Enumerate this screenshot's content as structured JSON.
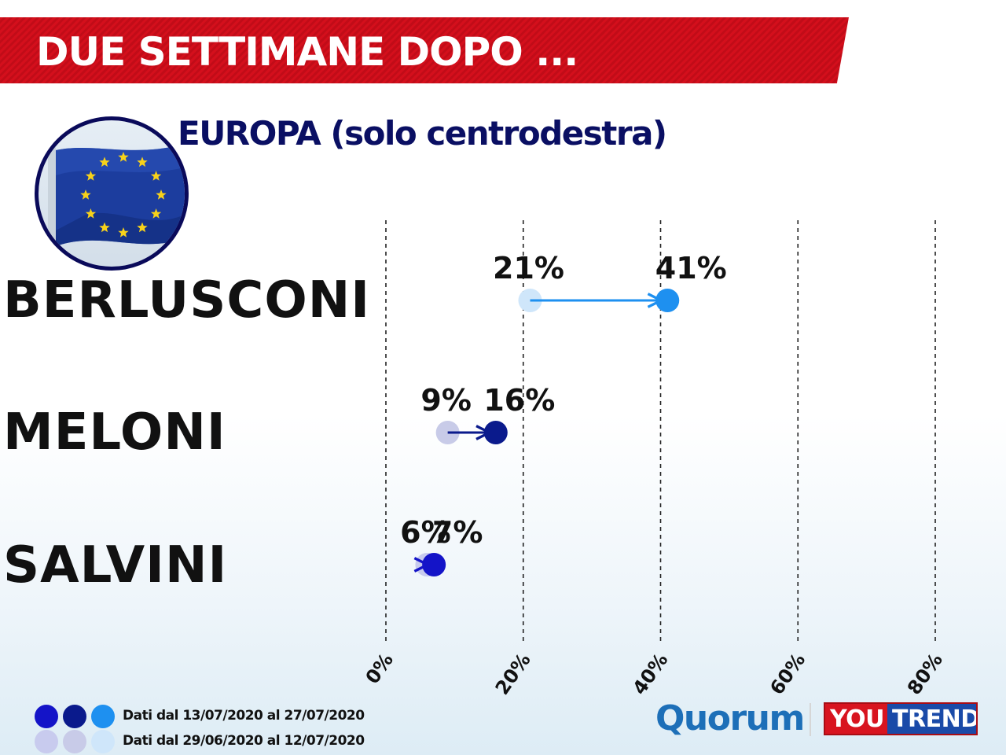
{
  "header": {
    "title": "DUE SETTIMANE DOPO ..."
  },
  "chart_data": {
    "type": "dumbbell",
    "title": "EUROPA (solo centrodestra)",
    "xlim": [
      0,
      80
    ],
    "ticks": [
      "0%",
      "20%",
      "40%",
      "60%",
      "80%"
    ],
    "tick_values": [
      0,
      20,
      40,
      60,
      80
    ],
    "grid": "vertical dashed",
    "rows": [
      {
        "label": "BERLUSCONI",
        "before": 21,
        "after": 41,
        "before_label": "21%",
        "after_label": "41%",
        "color": "#1e90f0",
        "light_color": "#cfe6fa"
      },
      {
        "label": "MELONI",
        "before": 9,
        "after": 16,
        "before_label": "9%",
        "after_label": "16%",
        "color": "#0a1a8c",
        "light_color": "#c8cbe8"
      },
      {
        "label": "SALVINI",
        "before": 6,
        "after": 7,
        "before_label": "6%",
        "after_label": "7%",
        "color": "#1414c8",
        "light_color": "#c8cbee"
      }
    ],
    "legend": [
      {
        "text": "Dati dal 13/07/2020 al 27/07/2020",
        "colors": [
          "#1414c8",
          "#0a1a8c",
          "#1e90f0"
        ]
      },
      {
        "text": "Dati dal 29/06/2020 al 12/07/2020",
        "colors": [
          "#c8cbee",
          "#c8cbe8",
          "#cfe6fa"
        ]
      }
    ]
  },
  "logos": {
    "quorum": "Quorum",
    "youtrend_you": "YOU",
    "youtrend_trend": "TREND"
  },
  "icons": {
    "flag": "eu-flag-icon"
  }
}
